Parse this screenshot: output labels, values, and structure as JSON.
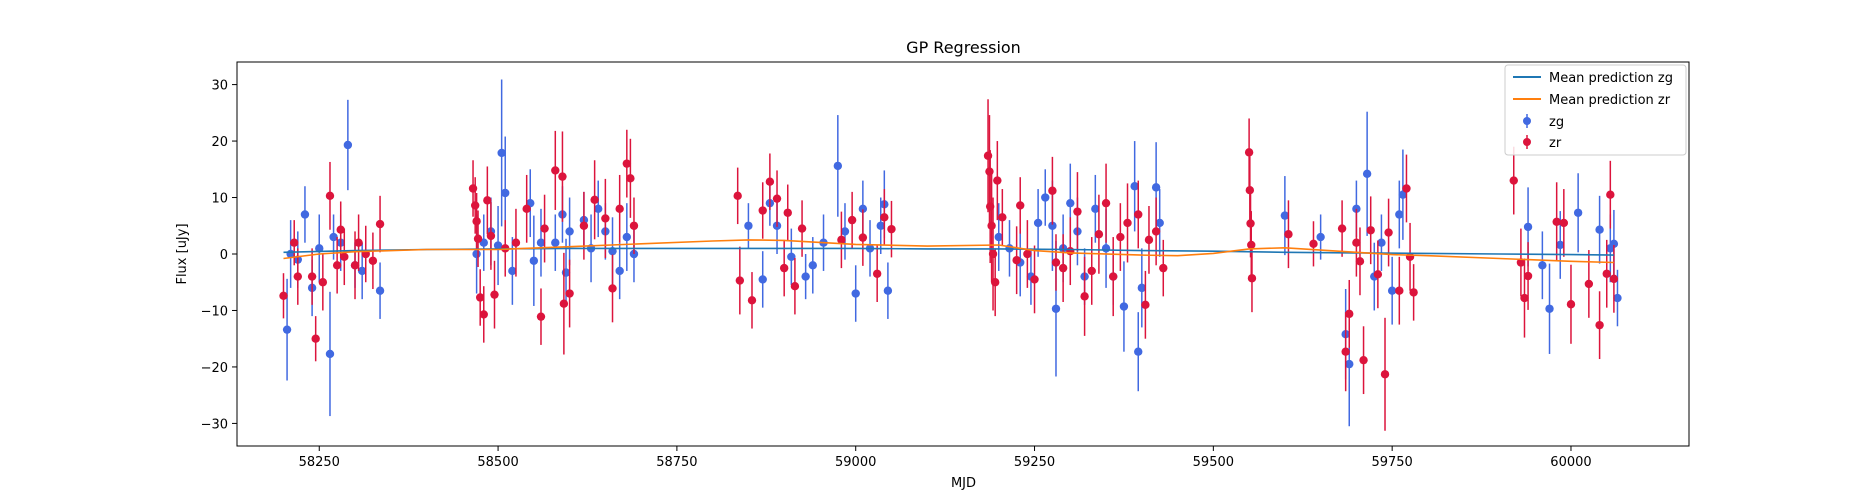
{
  "chart_data": {
    "type": "scatter",
    "title": "GP Regression",
    "xlabel": "MJD",
    "ylabel": "Flux [uJy]",
    "xlim": [
      58135,
      60165
    ],
    "ylim": [
      -34,
      34
    ],
    "xticks": [
      58250,
      58500,
      58750,
      59000,
      59250,
      59500,
      59750,
      60000
    ],
    "yticks": [
      -30,
      -20,
      -10,
      0,
      10,
      20,
      30
    ],
    "legend_position": "top-right",
    "lines": [
      {
        "name": "Mean prediction zg",
        "color": "#1f77b4",
        "x": [
          58200,
          58300,
          58400,
          58500,
          58600,
          58700,
          58800,
          58900,
          59000,
          59100,
          59200,
          59300,
          59400,
          59500,
          59600,
          59700,
          59800,
          59900,
          60000,
          60060
        ],
        "y": [
          0.3,
          0.6,
          0.8,
          0.9,
          1.0,
          1.0,
          1.0,
          1.0,
          1.0,
          0.9,
          0.9,
          0.8,
          0.6,
          0.5,
          0.3,
          0.2,
          0.1,
          0.0,
          -0.1,
          -0.2
        ]
      },
      {
        "name": "Mean prediction zr",
        "color": "#ff7f0e",
        "x": [
          58200,
          58250,
          58300,
          58400,
          58500,
          58600,
          58700,
          58800,
          58850,
          58900,
          59000,
          59100,
          59200,
          59250,
          59300,
          59400,
          59450,
          59500,
          59550,
          59600,
          59700,
          59750,
          59800,
          59900,
          60000,
          60060
        ],
        "y": [
          -0.8,
          0.0,
          0.4,
          0.8,
          0.8,
          1.3,
          1.8,
          2.3,
          2.5,
          2.4,
          1.7,
          1.4,
          1.6,
          0.6,
          0.2,
          -0.2,
          -0.3,
          0.1,
          0.9,
          1.1,
          0.3,
          -0.1,
          -0.3,
          -0.8,
          -1.3,
          -1.5
        ]
      }
    ],
    "series": [
      {
        "name": "zg",
        "color": "#4169e1",
        "points": [
          [
            58205,
            -13.4,
            9
          ],
          [
            58210,
            0,
            6
          ],
          [
            58220,
            -1,
            5
          ],
          [
            58230,
            7,
            5
          ],
          [
            58240,
            -6,
            5
          ],
          [
            58250,
            1,
            6
          ],
          [
            58265,
            -17.7,
            11
          ],
          [
            58270,
            3,
            4
          ],
          [
            58280,
            2,
            5
          ],
          [
            58290,
            19.3,
            8
          ],
          [
            58300,
            -2,
            4
          ],
          [
            58310,
            -3,
            5
          ],
          [
            58335,
            -6.5,
            5
          ],
          [
            58470,
            0,
            7
          ],
          [
            58480,
            2,
            5
          ],
          [
            58490,
            4,
            6
          ],
          [
            58500,
            1.5,
            7
          ],
          [
            58505,
            17.9,
            13
          ],
          [
            58510,
            10.8,
            10
          ],
          [
            58520,
            -3,
            6
          ],
          [
            58545,
            9,
            6
          ],
          [
            58550,
            -1.2,
            8
          ],
          [
            58560,
            2,
            6
          ],
          [
            58580,
            2,
            5
          ],
          [
            58590,
            7,
            5
          ],
          [
            58595,
            -3.3,
            6
          ],
          [
            58600,
            4,
            6
          ],
          [
            58620,
            6,
            5
          ],
          [
            58630,
            1,
            6
          ],
          [
            58640,
            8,
            5
          ],
          [
            58650,
            4,
            5
          ],
          [
            58660,
            0.5,
            6
          ],
          [
            58670,
            -3,
            5
          ],
          [
            58680,
            3,
            6
          ],
          [
            58690,
            0,
            5
          ],
          [
            58850,
            5,
            4
          ],
          [
            58870,
            -4.5,
            5
          ],
          [
            58880,
            9,
            4
          ],
          [
            58890,
            5,
            5
          ],
          [
            58910,
            -0.5,
            5
          ],
          [
            58930,
            -4,
            4
          ],
          [
            58940,
            -2,
            5
          ],
          [
            58955,
            2,
            5
          ],
          [
            58975,
            15.6,
            9
          ],
          [
            58985,
            4,
            5
          ],
          [
            59000,
            -7,
            5
          ],
          [
            59010,
            8,
            5
          ],
          [
            59020,
            1,
            5
          ],
          [
            59035,
            5,
            5
          ],
          [
            59040,
            8.8,
            6
          ],
          [
            59045,
            -6.5,
            5
          ],
          [
            59200,
            3,
            6
          ],
          [
            59215,
            1,
            5
          ],
          [
            59230,
            -1.5,
            6
          ],
          [
            59245,
            -4,
            5
          ],
          [
            59255,
            5.5,
            6
          ],
          [
            59265,
            10,
            5
          ],
          [
            59275,
            5,
            8
          ],
          [
            59280,
            -9.7,
            12
          ],
          [
            59290,
            1,
            6
          ],
          [
            59300,
            9,
            7
          ],
          [
            59310,
            4,
            6
          ],
          [
            59320,
            -4,
            5
          ],
          [
            59335,
            8,
            6
          ],
          [
            59350,
            1,
            7
          ],
          [
            59360,
            -4,
            5
          ],
          [
            59375,
            -9.3,
            8
          ],
          [
            59390,
            12,
            8
          ],
          [
            59395,
            -17.3,
            7
          ],
          [
            59400,
            -6,
            7
          ],
          [
            59420,
            11.8,
            8
          ],
          [
            59425,
            5.5,
            6
          ],
          [
            59600,
            6.8,
            7
          ],
          [
            59650,
            3,
            4
          ],
          [
            59685,
            -14.2,
            8
          ],
          [
            59690,
            -19.5,
            11
          ],
          [
            59700,
            8,
            5
          ],
          [
            59715,
            14.2,
            11
          ],
          [
            59725,
            -4,
            6
          ],
          [
            59735,
            2,
            5
          ],
          [
            59750,
            -6.5,
            6
          ],
          [
            59760,
            7,
            6
          ],
          [
            59765,
            10.5,
            8
          ],
          [
            59940,
            4.8,
            7
          ],
          [
            59960,
            -2,
            6
          ],
          [
            59970,
            -9.7,
            8
          ],
          [
            59985,
            1.6,
            6
          ],
          [
            60010,
            7.3,
            7
          ],
          [
            60040,
            4.3,
            6
          ],
          [
            60055,
            1,
            6
          ],
          [
            60060,
            1.8,
            6
          ],
          [
            60065,
            -7.8,
            5
          ]
        ]
      },
      {
        "name": "zr",
        "color": "#dc143c",
        "points": [
          [
            58200,
            -7.4,
            4
          ],
          [
            58215,
            2,
            4
          ],
          [
            58220,
            -4,
            5
          ],
          [
            58240,
            -4,
            5
          ],
          [
            58245,
            -15,
            4
          ],
          [
            58255,
            -5,
            5
          ],
          [
            58265,
            10.3,
            6
          ],
          [
            58275,
            -2,
            5
          ],
          [
            58280,
            4.3,
            5
          ],
          [
            58285,
            -0.5,
            5
          ],
          [
            58300,
            -2,
            6
          ],
          [
            58305,
            2,
            5
          ],
          [
            58315,
            0,
            5
          ],
          [
            58325,
            -1.2,
            5
          ],
          [
            58335,
            5.3,
            5
          ],
          [
            58465,
            11.6,
            5
          ],
          [
            58468,
            8.6,
            5
          ],
          [
            58470,
            5.8,
            5
          ],
          [
            58472,
            2.7,
            5
          ],
          [
            58475,
            -7.7,
            5
          ],
          [
            58480,
            -10.7,
            5
          ],
          [
            58485,
            9.5,
            6
          ],
          [
            58490,
            3.2,
            6
          ],
          [
            58495,
            -7.2,
            6
          ],
          [
            58510,
            1,
            5
          ],
          [
            58525,
            2,
            6
          ],
          [
            58540,
            8,
            6
          ],
          [
            58560,
            -11.1,
            5
          ],
          [
            58565,
            4.5,
            6
          ],
          [
            58580,
            14.8,
            7
          ],
          [
            58590,
            13.7,
            8
          ],
          [
            58592,
            -8.8,
            9
          ],
          [
            58600,
            -7,
            6
          ],
          [
            58620,
            5,
            6
          ],
          [
            58635,
            9.6,
            7
          ],
          [
            58650,
            6.3,
            7
          ],
          [
            58660,
            -6.1,
            6
          ],
          [
            58670,
            8,
            6
          ],
          [
            58680,
            16,
            6
          ],
          [
            58685,
            13.4,
            7
          ],
          [
            58690,
            5,
            5
          ],
          [
            58835,
            10.3,
            5
          ],
          [
            58838,
            -4.7,
            6
          ],
          [
            58855,
            -8.2,
            5
          ],
          [
            58870,
            7.7,
            5
          ],
          [
            58880,
            12.8,
            5
          ],
          [
            58890,
            9.8,
            5
          ],
          [
            58900,
            -2.5,
            5
          ],
          [
            58905,
            7.3,
            5
          ],
          [
            58915,
            -5.7,
            5
          ],
          [
            58925,
            4.5,
            5
          ],
          [
            58980,
            2.5,
            5
          ],
          [
            58995,
            6,
            5
          ],
          [
            59010,
            2.9,
            5
          ],
          [
            59030,
            -3.5,
            5
          ],
          [
            59040,
            6.5,
            5
          ],
          [
            59050,
            4.4,
            5
          ],
          [
            59185,
            17.4,
            10
          ],
          [
            59187,
            14.6,
            10
          ],
          [
            59188,
            8.4,
            10
          ],
          [
            59190,
            5,
            10
          ],
          [
            59192,
            0,
            10
          ],
          [
            59195,
            -5,
            6
          ],
          [
            59198,
            13,
            7
          ],
          [
            59205,
            6.5,
            5
          ],
          [
            59225,
            -1.1,
            6
          ],
          [
            59230,
            8.6,
            5
          ],
          [
            59240,
            0,
            6
          ],
          [
            59250,
            -4.5,
            6
          ],
          [
            59275,
            11.2,
            6
          ],
          [
            59280,
            -1.5,
            5
          ],
          [
            59290,
            -2.5,
            6
          ],
          [
            59300,
            0.5,
            6
          ],
          [
            59310,
            7.5,
            7
          ],
          [
            59320,
            -7.5,
            7
          ],
          [
            59330,
            -3,
            6
          ],
          [
            59340,
            3.5,
            7
          ],
          [
            59350,
            9,
            7
          ],
          [
            59360,
            -4,
            7
          ],
          [
            59370,
            3,
            6
          ],
          [
            59380,
            5.5,
            7
          ],
          [
            59395,
            7,
            6
          ],
          [
            59405,
            -9,
            6
          ],
          [
            59410,
            2.5,
            6
          ],
          [
            59420,
            4,
            6
          ],
          [
            59430,
            -2.5,
            5
          ],
          [
            59550,
            18,
            6
          ],
          [
            59551,
            11.3,
            6
          ],
          [
            59552,
            5.4,
            6
          ],
          [
            59553,
            1.6,
            6
          ],
          [
            59554,
            -4.3,
            6
          ],
          [
            59605,
            3.5,
            6
          ],
          [
            59640,
            1.8,
            4
          ],
          [
            59680,
            4.5,
            5
          ],
          [
            59685,
            -17.3,
            7
          ],
          [
            59690,
            -10.6,
            6
          ],
          [
            59700,
            2,
            6
          ],
          [
            59705,
            -1.3,
            6
          ],
          [
            59710,
            -18.8,
            6
          ],
          [
            59720,
            4.2,
            6
          ],
          [
            59730,
            -3.6,
            6
          ],
          [
            59740,
            -21.3,
            10
          ],
          [
            59745,
            3.8,
            6
          ],
          [
            59760,
            -6.5,
            6
          ],
          [
            59770,
            11.6,
            6
          ],
          [
            59775,
            -0.5,
            6
          ],
          [
            59780,
            -6.8,
            5
          ],
          [
            59920,
            13,
            6
          ],
          [
            59930,
            -1.5,
            6
          ],
          [
            59935,
            -7.8,
            7
          ],
          [
            59940,
            -3.9,
            6
          ],
          [
            59980,
            5.7,
            7
          ],
          [
            59990,
            5.5,
            6
          ],
          [
            60000,
            -8.9,
            7
          ],
          [
            60025,
            -5.3,
            6
          ],
          [
            60040,
            -12.6,
            6
          ],
          [
            60050,
            -3.5,
            6
          ],
          [
            60055,
            10.5,
            6
          ],
          [
            60060,
            -4.4,
            6
          ]
        ]
      }
    ]
  }
}
